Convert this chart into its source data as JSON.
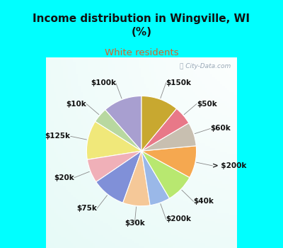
{
  "title": "Income distribution in Wingville, WI\n(%)",
  "subtitle": "White residents",
  "title_color": "#111111",
  "subtitle_color": "#d4622a",
  "bg_top": "#00ffff",
  "bg_chart_color": "#d4eee4",
  "labels": [
    "$100k",
    "$10k",
    "$125k",
    "$20k",
    "$75k",
    "$30k",
    "$200k",
    "$40k",
    "> $200k",
    "$60k",
    "$50k",
    "$150k"
  ],
  "sizes": [
    11.5,
    4.5,
    11.5,
    7.0,
    10.0,
    8.0,
    6.0,
    8.5,
    9.5,
    7.0,
    5.5,
    11.0
  ],
  "colors": [
    "#a89fd0",
    "#b8d8a0",
    "#f0e87a",
    "#f0b0b8",
    "#8090d8",
    "#f5c898",
    "#9ab8e8",
    "#b8e870",
    "#f5a850",
    "#c8bfb0",
    "#e87888",
    "#c8a830"
  ],
  "label_fontsize": 7.5,
  "startangle": 90
}
